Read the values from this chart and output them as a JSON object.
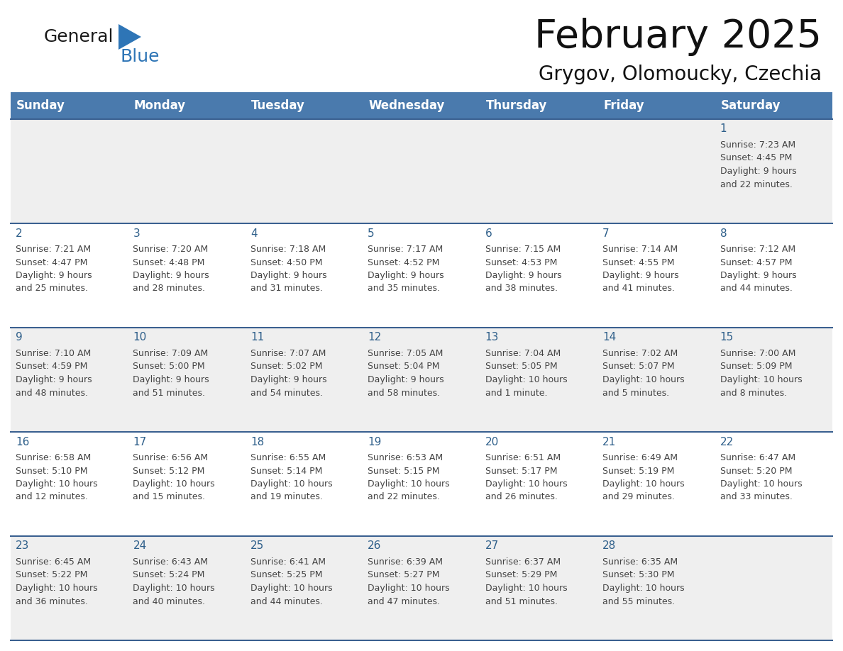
{
  "title": "February 2025",
  "subtitle": "Grygov, Olomoucky, Czechia",
  "header_bg_color": "#4a7aad",
  "header_text_color": "#ffffff",
  "row_bg_colors": [
    "#efefef",
    "#ffffff"
  ],
  "day_headers": [
    "Sunday",
    "Monday",
    "Tuesday",
    "Wednesday",
    "Thursday",
    "Friday",
    "Saturday"
  ],
  "calendar_data": [
    [
      null,
      null,
      null,
      null,
      null,
      null,
      {
        "day": "1",
        "sunrise": "7:23 AM",
        "sunset": "4:45 PM",
        "daylight": "9 hours\nand 22 minutes."
      }
    ],
    [
      {
        "day": "2",
        "sunrise": "7:21 AM",
        "sunset": "4:47 PM",
        "daylight": "9 hours\nand 25 minutes."
      },
      {
        "day": "3",
        "sunrise": "7:20 AM",
        "sunset": "4:48 PM",
        "daylight": "9 hours\nand 28 minutes."
      },
      {
        "day": "4",
        "sunrise": "7:18 AM",
        "sunset": "4:50 PM",
        "daylight": "9 hours\nand 31 minutes."
      },
      {
        "day": "5",
        "sunrise": "7:17 AM",
        "sunset": "4:52 PM",
        "daylight": "9 hours\nand 35 minutes."
      },
      {
        "day": "6",
        "sunrise": "7:15 AM",
        "sunset": "4:53 PM",
        "daylight": "9 hours\nand 38 minutes."
      },
      {
        "day": "7",
        "sunrise": "7:14 AM",
        "sunset": "4:55 PM",
        "daylight": "9 hours\nand 41 minutes."
      },
      {
        "day": "8",
        "sunrise": "7:12 AM",
        "sunset": "4:57 PM",
        "daylight": "9 hours\nand 44 minutes."
      }
    ],
    [
      {
        "day": "9",
        "sunrise": "7:10 AM",
        "sunset": "4:59 PM",
        "daylight": "9 hours\nand 48 minutes."
      },
      {
        "day": "10",
        "sunrise": "7:09 AM",
        "sunset": "5:00 PM",
        "daylight": "9 hours\nand 51 minutes."
      },
      {
        "day": "11",
        "sunrise": "7:07 AM",
        "sunset": "5:02 PM",
        "daylight": "9 hours\nand 54 minutes."
      },
      {
        "day": "12",
        "sunrise": "7:05 AM",
        "sunset": "5:04 PM",
        "daylight": "9 hours\nand 58 minutes."
      },
      {
        "day": "13",
        "sunrise": "7:04 AM",
        "sunset": "5:05 PM",
        "daylight": "10 hours\nand 1 minute."
      },
      {
        "day": "14",
        "sunrise": "7:02 AM",
        "sunset": "5:07 PM",
        "daylight": "10 hours\nand 5 minutes."
      },
      {
        "day": "15",
        "sunrise": "7:00 AM",
        "sunset": "5:09 PM",
        "daylight": "10 hours\nand 8 minutes."
      }
    ],
    [
      {
        "day": "16",
        "sunrise": "6:58 AM",
        "sunset": "5:10 PM",
        "daylight": "10 hours\nand 12 minutes."
      },
      {
        "day": "17",
        "sunrise": "6:56 AM",
        "sunset": "5:12 PM",
        "daylight": "10 hours\nand 15 minutes."
      },
      {
        "day": "18",
        "sunrise": "6:55 AM",
        "sunset": "5:14 PM",
        "daylight": "10 hours\nand 19 minutes."
      },
      {
        "day": "19",
        "sunrise": "6:53 AM",
        "sunset": "5:15 PM",
        "daylight": "10 hours\nand 22 minutes."
      },
      {
        "day": "20",
        "sunrise": "6:51 AM",
        "sunset": "5:17 PM",
        "daylight": "10 hours\nand 26 minutes."
      },
      {
        "day": "21",
        "sunrise": "6:49 AM",
        "sunset": "5:19 PM",
        "daylight": "10 hours\nand 29 minutes."
      },
      {
        "day": "22",
        "sunrise": "6:47 AM",
        "sunset": "5:20 PM",
        "daylight": "10 hours\nand 33 minutes."
      }
    ],
    [
      {
        "day": "23",
        "sunrise": "6:45 AM",
        "sunset": "5:22 PM",
        "daylight": "10 hours\nand 36 minutes."
      },
      {
        "day": "24",
        "sunrise": "6:43 AM",
        "sunset": "5:24 PM",
        "daylight": "10 hours\nand 40 minutes."
      },
      {
        "day": "25",
        "sunrise": "6:41 AM",
        "sunset": "5:25 PM",
        "daylight": "10 hours\nand 44 minutes."
      },
      {
        "day": "26",
        "sunrise": "6:39 AM",
        "sunset": "5:27 PM",
        "daylight": "10 hours\nand 47 minutes."
      },
      {
        "day": "27",
        "sunrise": "6:37 AM",
        "sunset": "5:29 PM",
        "daylight": "10 hours\nand 51 minutes."
      },
      {
        "day": "28",
        "sunrise": "6:35 AM",
        "sunset": "5:30 PM",
        "daylight": "10 hours\nand 55 minutes."
      },
      null
    ]
  ],
  "logo_triangle_color": "#2e75b6",
  "cell_border_top_color": "#3a6090",
  "text_color": "#444444",
  "day_number_color": "#2e5f8a",
  "bg_color": "#ffffff",
  "title_fontsize": 40,
  "subtitle_fontsize": 20,
  "header_fontsize": 12,
  "day_num_fontsize": 11,
  "info_fontsize": 9
}
